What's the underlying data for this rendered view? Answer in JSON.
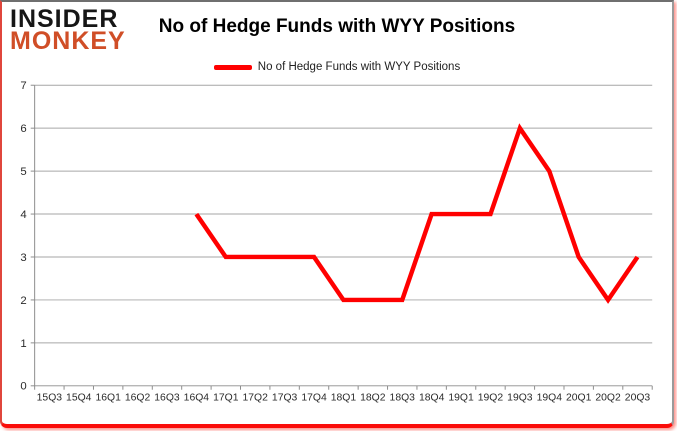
{
  "logo": {
    "line1": "INSIDER",
    "line2": "MONKEY",
    "line1_color": "#161616",
    "line2_color": "#d04e27"
  },
  "title": "No of Hedge Funds with WYY Positions",
  "legend": {
    "label": "No of Hedge Funds with WYY Positions",
    "swatch_color": "#ff0000"
  },
  "chart_data": {
    "type": "line",
    "title": "No of Hedge Funds with WYY Positions",
    "categories": [
      "15Q3",
      "15Q4",
      "16Q1",
      "16Q2",
      "16Q3",
      "16Q4",
      "17Q1",
      "17Q2",
      "17Q3",
      "17Q4",
      "18Q1",
      "18Q2",
      "18Q3",
      "18Q4",
      "19Q1",
      "19Q2",
      "19Q3",
      "19Q4",
      "20Q1",
      "20Q2",
      "20Q3"
    ],
    "series": [
      {
        "name": "No of Hedge Funds with WYY Positions",
        "color": "#ff0000",
        "values": [
          null,
          null,
          null,
          null,
          null,
          4,
          3,
          3,
          3,
          3,
          2,
          2,
          2,
          4,
          4,
          4,
          6,
          5,
          3,
          2,
          3
        ]
      }
    ],
    "xlabel": "",
    "ylabel": "",
    "ylim": [
      0,
      7
    ],
    "ytick_step": 1,
    "grid": true,
    "legend_position": "top-center",
    "style": {
      "grid_color": "#a6a6a6",
      "axis_color": "#8c8c8c",
      "tick_label_color": "#2b2b2b",
      "line_width": 4.5
    }
  }
}
